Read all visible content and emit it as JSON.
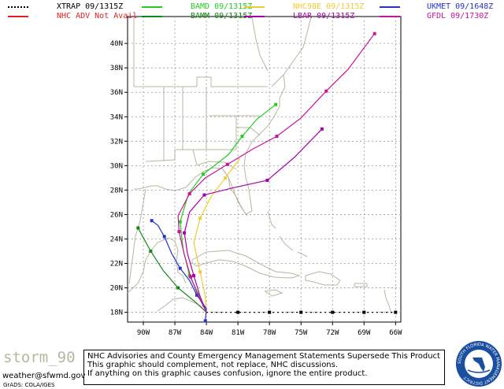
{
  "legend": {
    "items": [
      {
        "label": "XTRAP    09/1315Z",
        "color": "#000000",
        "dash": "2,4"
      },
      {
        "label": "NHC ADV Not Avail",
        "color": "#e02020",
        "dash": ""
      },
      {
        "label": "BAMD 09/1315Z",
        "color": "#22cc22",
        "dash": ""
      },
      {
        "label": "BAMM 09/1315Z",
        "color": "#118811",
        "dash": ""
      },
      {
        "label": "NHC98E  09/1315Z",
        "color": "#eecc33",
        "dash": ""
      },
      {
        "label": "LBAR       09/1315Z",
        "color": "#aa00aa",
        "dash": ""
      },
      {
        "label": "UKMET 09/1648Z",
        "color": "#2233cc",
        "dash": ""
      },
      {
        "label": "GFDL  09/1730Z",
        "color": "#cc1199",
        "dash": ""
      }
    ]
  },
  "axes": {
    "lat_labels": [
      "40N",
      "38N",
      "36N",
      "34N",
      "32N",
      "30N",
      "28N",
      "26N",
      "24N",
      "22N",
      "20N",
      "18N"
    ],
    "lat_values": [
      40,
      38,
      36,
      34,
      32,
      30,
      28,
      26,
      24,
      22,
      20,
      18
    ],
    "lon_labels": [
      "90W",
      "87W",
      "84W",
      "81W",
      "78W",
      "75W",
      "72W",
      "69W",
      "66W"
    ],
    "lon_values": [
      -90,
      -87,
      -84,
      -81,
      -78,
      -75,
      -72,
      -69,
      -66
    ],
    "lat_range": [
      17.2,
      42.2
    ],
    "lon_range": [
      -91.5,
      -65.5
    ]
  },
  "tracks": [
    {
      "name": "XTRAP",
      "color": "#000000",
      "dash": "2,4",
      "points": [
        [
          -84.0,
          18.0
        ],
        [
          -81.0,
          18.0
        ],
        [
          -78.0,
          18.0
        ],
        [
          -75.0,
          18.0
        ],
        [
          -72.0,
          18.0
        ],
        [
          -69.0,
          18.0
        ],
        [
          -66.0,
          18.0
        ]
      ]
    },
    {
      "name": "BAMD",
      "color": "#22cc22",
      "dash": "",
      "points": [
        [
          -84.0,
          18.0
        ],
        [
          -84.6,
          19.2
        ],
        [
          -85.6,
          21.0
        ],
        [
          -86.2,
          23.1
        ],
        [
          -86.5,
          25.4
        ],
        [
          -85.7,
          27.7
        ],
        [
          -84.3,
          29.3
        ],
        [
          -81.9,
          30.9
        ],
        [
          -80.6,
          32.4
        ],
        [
          -79.2,
          33.8
        ],
        [
          -77.4,
          35.0
        ]
      ]
    },
    {
      "name": "BAMM",
      "color": "#118811",
      "dash": "",
      "points": [
        [
          -84.0,
          18.0
        ],
        [
          -85.0,
          18.8
        ],
        [
          -86.7,
          20.0
        ],
        [
          -88.1,
          21.4
        ],
        [
          -89.3,
          23.0
        ],
        [
          -90.0,
          24.1
        ],
        [
          -90.5,
          24.9
        ]
      ]
    },
    {
      "name": "NHC98E",
      "color": "#eecc33",
      "dash": "",
      "points": [
        [
          -84.0,
          18.0
        ],
        [
          -84.1,
          19.3
        ],
        [
          -84.6,
          21.3
        ],
        [
          -85.2,
          23.7
        ],
        [
          -84.6,
          25.7
        ],
        [
          -83.6,
          27.4
        ],
        [
          -82.2,
          29.0
        ],
        [
          -80.8,
          30.6
        ]
      ]
    },
    {
      "name": "LBAR",
      "color": "#aa00aa",
      "dash": "",
      "points": [
        [
          -84.0,
          18.0
        ],
        [
          -84.6,
          19.3
        ],
        [
          -85.2,
          21.0
        ],
        [
          -85.8,
          22.8
        ],
        [
          -86.1,
          24.5
        ],
        [
          -85.6,
          26.2
        ],
        [
          -84.2,
          27.6
        ],
        [
          -81.4,
          28.2
        ],
        [
          -78.2,
          28.8
        ],
        [
          -75.6,
          30.7
        ],
        [
          -73.0,
          33.0
        ]
      ]
    },
    {
      "name": "UKMET",
      "color": "#2233cc",
      "dash": "",
      "points": [
        [
          -84.1,
          17.3
        ],
        [
          -84.0,
          18.3
        ],
        [
          -84.9,
          19.4
        ],
        [
          -85.6,
          20.6
        ],
        [
          -86.5,
          21.6
        ],
        [
          -87.3,
          22.8
        ],
        [
          -88.0,
          24.2
        ],
        [
          -88.6,
          25.1
        ],
        [
          -89.2,
          25.5
        ]
      ]
    },
    {
      "name": "GFDL",
      "color": "#cc1199",
      "dash": "",
      "points": [
        [
          -84.0,
          18.0
        ],
        [
          -84.8,
          19.4
        ],
        [
          -85.5,
          20.9
        ],
        [
          -86.1,
          22.7
        ],
        [
          -86.6,
          24.6
        ],
        [
          -86.7,
          25.9
        ],
        [
          -85.6,
          27.7
        ],
        [
          -84.1,
          29.0
        ],
        [
          -82.0,
          30.1
        ],
        [
          -79.5,
          31.4
        ],
        [
          -77.3,
          32.4
        ],
        [
          -75.0,
          33.9
        ],
        [
          -72.6,
          36.1
        ],
        [
          -70.5,
          37.9
        ],
        [
          -68.0,
          40.8
        ]
      ]
    }
  ],
  "footer": {
    "storm_name": "storm_90",
    "email": "weather@sfwmd.gov",
    "grads": "GrADS: COLA/IGES",
    "disclaimer_lines": [
      "NHC Advisories and County Emergency Management Statements Supersede This Product.",
      "This graphic should complement, not replace, NHC discussions.",
      "If anything on this graphic causes confusion, ignore the entire product."
    ],
    "seal_text": "SOUTH FLORIDA WATER MANAGEMENT DISTRICT"
  },
  "colors": {
    "land": "#b7b7a0",
    "grid": "#999999"
  }
}
